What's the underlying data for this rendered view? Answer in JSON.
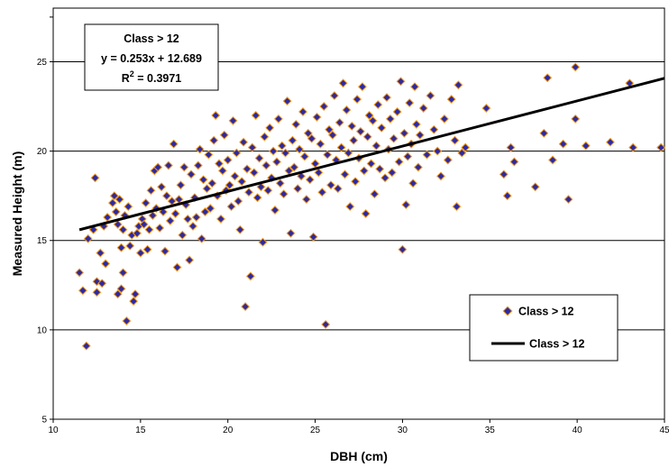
{
  "chart_data": {
    "type": "scatter",
    "title": "",
    "xlabel": "DBH (cm)",
    "ylabel": "Measured Height (m)",
    "xlim": [
      10,
      45
    ],
    "ylim": [
      5,
      28
    ],
    "x_ticks": [
      "10",
      "15",
      "20",
      "25",
      "30",
      "35",
      "40",
      "45"
    ],
    "y_ticks": [
      "5",
      "10",
      "15",
      "20",
      "25"
    ],
    "grid": "horizontal at major y ticks",
    "legend_position": "bottom-right",
    "annotation": {
      "line1": "Class > 12",
      "line2": "y = 0.253x + 12.689",
      "r2_prefix": "R",
      "r2_sup": "2",
      "r2_suffix": " = 0.3971"
    },
    "legend": [
      {
        "label": "Class > 12",
        "kind": "marker"
      },
      {
        "label": "Class > 12",
        "kind": "line"
      }
    ],
    "colors": {
      "marker_fill": "#2e2aa0",
      "marker_edge": "#f39a1e",
      "line": "#000000",
      "grid": "#000000"
    },
    "trendline": {
      "slope": 0.253,
      "intercept": 12.689,
      "x_range": [
        11.5,
        45
      ]
    },
    "series": [
      {
        "name": "Class > 12",
        "points": [
          [
            11.5,
            13.2
          ],
          [
            11.7,
            12.2
          ],
          [
            11.9,
            9.1
          ],
          [
            12.0,
            15.1
          ],
          [
            12.3,
            15.6
          ],
          [
            12.4,
            18.5
          ],
          [
            12.5,
            12.1
          ],
          [
            12.5,
            12.7
          ],
          [
            12.7,
            14.3
          ],
          [
            12.8,
            12.6
          ],
          [
            12.9,
            15.8
          ],
          [
            13.0,
            13.7
          ],
          [
            13.1,
            16.3
          ],
          [
            13.4,
            17.1
          ],
          [
            13.5,
            17.5
          ],
          [
            13.6,
            16.6
          ],
          [
            13.7,
            15.9
          ],
          [
            13.7,
            12.0
          ],
          [
            13.8,
            17.3
          ],
          [
            13.9,
            12.3
          ],
          [
            13.9,
            14.6
          ],
          [
            14.0,
            13.2
          ],
          [
            14.0,
            15.6
          ],
          [
            14.1,
            16.4
          ],
          [
            14.2,
            10.5
          ],
          [
            14.3,
            16.9
          ],
          [
            14.4,
            14.7
          ],
          [
            14.5,
            15.3
          ],
          [
            14.6,
            11.6
          ],
          [
            14.7,
            12.0
          ],
          [
            14.8,
            15.4
          ],
          [
            14.9,
            15.8
          ],
          [
            15.0,
            14.3
          ],
          [
            15.1,
            16.2
          ],
          [
            15.2,
            15.9
          ],
          [
            15.3,
            17.1
          ],
          [
            15.4,
            14.5
          ],
          [
            15.5,
            15.6
          ],
          [
            15.6,
            17.8
          ],
          [
            15.7,
            16.4
          ],
          [
            15.8,
            18.9
          ],
          [
            15.9,
            16.8
          ],
          [
            16.0,
            19.1
          ],
          [
            16.1,
            15.7
          ],
          [
            16.2,
            18.0
          ],
          [
            16.3,
            16.6
          ],
          [
            16.4,
            14.4
          ],
          [
            16.5,
            17.5
          ],
          [
            16.6,
            19.2
          ],
          [
            16.7,
            16.1
          ],
          [
            16.8,
            17.2
          ],
          [
            16.9,
            20.4
          ],
          [
            17.0,
            16.5
          ],
          [
            17.1,
            13.5
          ],
          [
            17.2,
            17.3
          ],
          [
            17.3,
            18.1
          ],
          [
            17.4,
            15.3
          ],
          [
            17.5,
            19.1
          ],
          [
            17.6,
            17.0
          ],
          [
            17.7,
            16.2
          ],
          [
            17.8,
            13.9
          ],
          [
            17.9,
            18.7
          ],
          [
            18.0,
            15.8
          ],
          [
            18.1,
            17.4
          ],
          [
            18.2,
            16.3
          ],
          [
            18.3,
            19.2
          ],
          [
            18.4,
            20.1
          ],
          [
            18.5,
            15.1
          ],
          [
            18.6,
            18.4
          ],
          [
            18.7,
            16.6
          ],
          [
            18.8,
            17.9
          ],
          [
            18.9,
            19.8
          ],
          [
            19.0,
            16.8
          ],
          [
            19.1,
            18.2
          ],
          [
            19.2,
            20.6
          ],
          [
            19.3,
            22.0
          ],
          [
            19.4,
            17.5
          ],
          [
            19.5,
            19.3
          ],
          [
            19.6,
            16.2
          ],
          [
            19.7,
            18.9
          ],
          [
            19.8,
            20.9
          ],
          [
            19.9,
            17.8
          ],
          [
            20.0,
            19.5
          ],
          [
            20.1,
            18.1
          ],
          [
            20.2,
            16.9
          ],
          [
            20.3,
            21.7
          ],
          [
            20.4,
            18.6
          ],
          [
            20.5,
            19.9
          ],
          [
            20.6,
            17.2
          ],
          [
            20.7,
            15.6
          ],
          [
            20.8,
            18.3
          ],
          [
            20.9,
            20.5
          ],
          [
            21.0,
            11.3
          ],
          [
            21.1,
            19.0
          ],
          [
            21.2,
            17.7
          ],
          [
            21.3,
            13.0
          ],
          [
            21.4,
            20.2
          ],
          [
            21.5,
            18.8
          ],
          [
            21.6,
            22.0
          ],
          [
            21.7,
            17.4
          ],
          [
            21.8,
            19.6
          ],
          [
            21.9,
            18.0
          ],
          [
            22.0,
            14.9
          ],
          [
            22.1,
            20.8
          ],
          [
            22.2,
            19.2
          ],
          [
            22.3,
            17.8
          ],
          [
            22.4,
            21.3
          ],
          [
            22.5,
            18.5
          ],
          [
            22.6,
            20.0
          ],
          [
            22.7,
            16.7
          ],
          [
            22.8,
            19.4
          ],
          [
            22.9,
            21.8
          ],
          [
            23.0,
            18.2
          ],
          [
            23.1,
            20.3
          ],
          [
            23.2,
            17.6
          ],
          [
            23.3,
            19.9
          ],
          [
            23.4,
            22.8
          ],
          [
            23.5,
            18.9
          ],
          [
            23.6,
            15.4
          ],
          [
            23.7,
            20.6
          ],
          [
            23.8,
            19.1
          ],
          [
            23.9,
            21.5
          ],
          [
            24.0,
            17.9
          ],
          [
            24.1,
            20.1
          ],
          [
            24.2,
            18.6
          ],
          [
            24.3,
            22.2
          ],
          [
            24.4,
            19.7
          ],
          [
            24.5,
            17.3
          ],
          [
            24.6,
            21.0
          ],
          [
            24.7,
            18.4
          ],
          [
            24.8,
            20.7
          ],
          [
            24.9,
            15.2
          ],
          [
            25.0,
            19.3
          ],
          [
            25.1,
            21.9
          ],
          [
            25.2,
            18.8
          ],
          [
            25.3,
            20.4
          ],
          [
            25.4,
            17.7
          ],
          [
            25.5,
            22.5
          ],
          [
            25.6,
            10.3
          ],
          [
            25.7,
            19.8
          ],
          [
            25.8,
            21.2
          ],
          [
            25.9,
            18.1
          ],
          [
            26.0,
            20.9
          ],
          [
            26.1,
            23.1
          ],
          [
            26.2,
            19.5
          ],
          [
            26.3,
            17.9
          ],
          [
            26.4,
            21.6
          ],
          [
            26.5,
            20.2
          ],
          [
            26.6,
            23.8
          ],
          [
            26.7,
            18.7
          ],
          [
            26.8,
            22.3
          ],
          [
            26.9,
            19.9
          ],
          [
            27.0,
            16.9
          ],
          [
            27.1,
            21.4
          ],
          [
            27.2,
            20.6
          ],
          [
            27.3,
            18.3
          ],
          [
            27.4,
            22.9
          ],
          [
            27.5,
            19.6
          ],
          [
            27.6,
            21.1
          ],
          [
            27.7,
            23.6
          ],
          [
            27.8,
            18.9
          ],
          [
            27.9,
            16.5
          ],
          [
            28.0,
            20.8
          ],
          [
            28.1,
            22.0
          ],
          [
            28.2,
            19.3
          ],
          [
            28.3,
            21.7
          ],
          [
            28.4,
            17.6
          ],
          [
            28.5,
            20.3
          ],
          [
            28.6,
            22.6
          ],
          [
            28.7,
            19.0
          ],
          [
            28.8,
            21.3
          ],
          [
            29.0,
            18.5
          ],
          [
            29.1,
            23.0
          ],
          [
            29.2,
            20.1
          ],
          [
            29.3,
            21.8
          ],
          [
            29.4,
            18.8
          ],
          [
            29.5,
            20.7
          ],
          [
            29.7,
            22.2
          ],
          [
            29.8,
            19.4
          ],
          [
            29.9,
            23.9
          ],
          [
            30.0,
            14.5
          ],
          [
            30.1,
            21.0
          ],
          [
            30.2,
            17.0
          ],
          [
            30.3,
            19.7
          ],
          [
            30.4,
            22.7
          ],
          [
            30.5,
            20.4
          ],
          [
            30.6,
            18.2
          ],
          [
            30.7,
            23.6
          ],
          [
            30.8,
            21.5
          ],
          [
            30.9,
            19.1
          ],
          [
            31.0,
            20.9
          ],
          [
            31.2,
            22.4
          ],
          [
            31.4,
            19.8
          ],
          [
            31.6,
            23.1
          ],
          [
            31.8,
            21.2
          ],
          [
            32.0,
            20.0
          ],
          [
            32.2,
            18.6
          ],
          [
            32.4,
            21.8
          ],
          [
            32.6,
            19.5
          ],
          [
            32.8,
            22.9
          ],
          [
            33.0,
            20.6
          ],
          [
            33.1,
            16.9
          ],
          [
            33.2,
            23.7
          ],
          [
            33.4,
            19.9
          ],
          [
            33.6,
            20.2
          ],
          [
            34.8,
            22.4
          ],
          [
            35.8,
            18.7
          ],
          [
            36.0,
            17.5
          ],
          [
            36.2,
            20.2
          ],
          [
            36.4,
            19.4
          ],
          [
            37.6,
            18.0
          ],
          [
            38.1,
            21.0
          ],
          [
            38.3,
            24.1
          ],
          [
            38.6,
            19.5
          ],
          [
            39.2,
            20.4
          ],
          [
            39.5,
            17.3
          ],
          [
            39.9,
            24.7
          ],
          [
            39.9,
            21.8
          ],
          [
            40.5,
            20.3
          ],
          [
            41.9,
            20.5
          ],
          [
            43.0,
            23.8
          ],
          [
            43.2,
            20.2
          ],
          [
            44.8,
            20.2
          ]
        ]
      }
    ]
  }
}
